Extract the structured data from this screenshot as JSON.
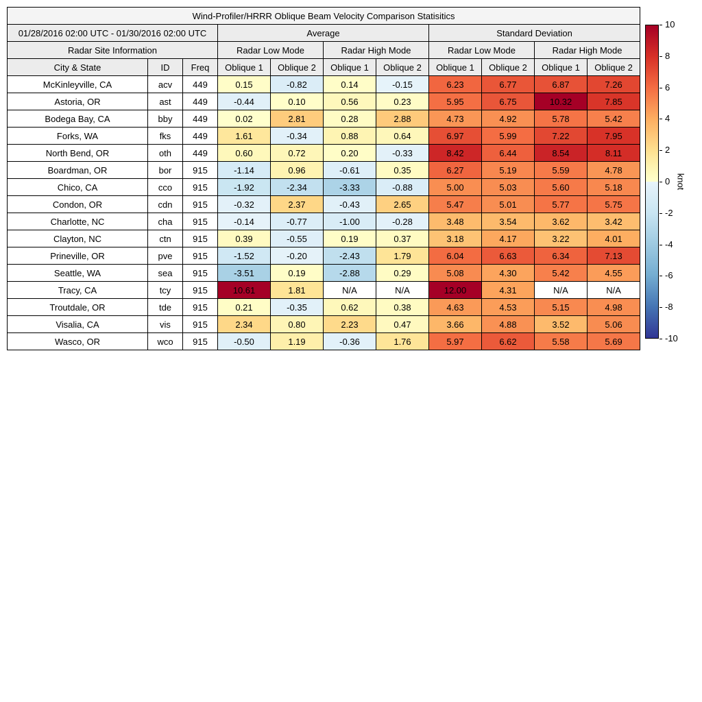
{
  "chart_data": {
    "type": "heatmap",
    "title": "Wind-Profiler/HRRR Oblique Beam Velocity Comparison Statisitics",
    "date_range": "01/28/2016 02:00 UTC - 01/30/2016 02:00 UTC",
    "group_headers": {
      "average": "Average",
      "std_dev": "Standard Deviation"
    },
    "section_headers": {
      "site_info": "Radar Site Information",
      "modes": [
        "Radar Low Mode",
        "Radar High Mode",
        "Radar Low Mode",
        "Radar High Mode"
      ]
    },
    "columns": {
      "city": "City & State",
      "id": "ID",
      "freq": "Freq",
      "oblique": [
        "Oblique 1",
        "Oblique 2",
        "Oblique 1",
        "Oblique 2",
        "Oblique 1",
        "Oblique 2",
        "Oblique 1",
        "Oblique 2"
      ]
    },
    "rows": [
      {
        "city": "McKinleyville, CA",
        "id": "acv",
        "freq": "449",
        "values": [
          "0.15",
          "-0.82",
          "0.14",
          "-0.15",
          "6.23",
          "6.77",
          "6.87",
          "7.26"
        ]
      },
      {
        "city": "Astoria, OR",
        "id": "ast",
        "freq": "449",
        "values": [
          "-0.44",
          "0.10",
          "0.56",
          "0.23",
          "5.95",
          "6.75",
          "10.32",
          "7.85"
        ]
      },
      {
        "city": "Bodega Bay, CA",
        "id": "bby",
        "freq": "449",
        "values": [
          "0.02",
          "2.81",
          "0.28",
          "2.88",
          "4.73",
          "4.92",
          "5.78",
          "5.42"
        ]
      },
      {
        "city": "Forks, WA",
        "id": "fks",
        "freq": "449",
        "values": [
          "1.61",
          "-0.34",
          "0.88",
          "0.64",
          "6.97",
          "5.99",
          "7.22",
          "7.95"
        ]
      },
      {
        "city": "North Bend, OR",
        "id": "oth",
        "freq": "449",
        "values": [
          "0.60",
          "0.72",
          "0.20",
          "-0.33",
          "8.42",
          "6.44",
          "8.54",
          "8.11"
        ]
      },
      {
        "city": "Boardman, OR",
        "id": "bor",
        "freq": "915",
        "values": [
          "-1.14",
          "0.96",
          "-0.61",
          "0.35",
          "6.27",
          "5.19",
          "5.59",
          "4.78"
        ]
      },
      {
        "city": "Chico, CA",
        "id": "cco",
        "freq": "915",
        "values": [
          "-1.92",
          "-2.34",
          "-3.33",
          "-0.88",
          "5.00",
          "5.03",
          "5.60",
          "5.18"
        ]
      },
      {
        "city": "Condon, OR",
        "id": "cdn",
        "freq": "915",
        "values": [
          "-0.32",
          "2.37",
          "-0.43",
          "2.65",
          "5.47",
          "5.01",
          "5.77",
          "5.75"
        ]
      },
      {
        "city": "Charlotte, NC",
        "id": "cha",
        "freq": "915",
        "values": [
          "-0.14",
          "-0.77",
          "-1.00",
          "-0.28",
          "3.48",
          "3.54",
          "3.62",
          "3.42"
        ]
      },
      {
        "city": "Clayton, NC",
        "id": "ctn",
        "freq": "915",
        "values": [
          "0.39",
          "-0.55",
          "0.19",
          "0.37",
          "3.18",
          "4.17",
          "3.22",
          "4.01"
        ]
      },
      {
        "city": "Prineville, OR",
        "id": "pve",
        "freq": "915",
        "values": [
          "-1.52",
          "-0.20",
          "-2.43",
          "1.79",
          "6.04",
          "6.63",
          "6.34",
          "7.13"
        ]
      },
      {
        "city": "Seattle, WA",
        "id": "sea",
        "freq": "915",
        "values": [
          "-3.51",
          "0.19",
          "-2.88",
          "0.29",
          "5.08",
          "4.30",
          "5.42",
          "4.55"
        ]
      },
      {
        "city": "Tracy, CA",
        "id": "tcy",
        "freq": "915",
        "values": [
          "10.61",
          "1.81",
          "N/A",
          "N/A",
          "12.00",
          "4.31",
          "N/A",
          "N/A"
        ]
      },
      {
        "city": "Troutdale, OR",
        "id": "tde",
        "freq": "915",
        "values": [
          "0.21",
          "-0.35",
          "0.62",
          "0.38",
          "4.63",
          "4.53",
          "5.15",
          "4.98"
        ]
      },
      {
        "city": "Visalia, CA",
        "id": "vis",
        "freq": "915",
        "values": [
          "2.34",
          "0.80",
          "2.23",
          "0.47",
          "3.66",
          "4.88",
          "3.52",
          "5.06"
        ]
      },
      {
        "city": "Wasco, OR",
        "id": "wco",
        "freq": "915",
        "values": [
          "-0.50",
          "1.19",
          "-0.36",
          "1.76",
          "5.97",
          "6.62",
          "5.58",
          "5.69"
        ]
      }
    ],
    "colorbar": {
      "label": "knot",
      "min": -10,
      "max": 10,
      "ticks": [
        10,
        8,
        6,
        4,
        2,
        0,
        -2,
        -4,
        -6,
        -8,
        -10
      ],
      "na_color": "#ffffff",
      "stops": [
        {
          "v": -10,
          "c": "#313695"
        },
        {
          "v": -8,
          "c": "#4575b4"
        },
        {
          "v": -6,
          "c": "#74add1"
        },
        {
          "v": -4,
          "c": "#9ecae1"
        },
        {
          "v": -2,
          "c": "#c9e5f2"
        },
        {
          "v": -0.3,
          "c": "#e3f1f9"
        },
        {
          "v": -0.01,
          "c": "#e8f4fa"
        },
        {
          "v": 0.01,
          "c": "#ffffcc"
        },
        {
          "v": 1,
          "c": "#fef3b0"
        },
        {
          "v": 2,
          "c": "#fee090"
        },
        {
          "v": 4,
          "c": "#fdae61"
        },
        {
          "v": 6,
          "c": "#f46d43"
        },
        {
          "v": 8,
          "c": "#d73027"
        },
        {
          "v": 10,
          "c": "#a50026"
        }
      ]
    }
  }
}
